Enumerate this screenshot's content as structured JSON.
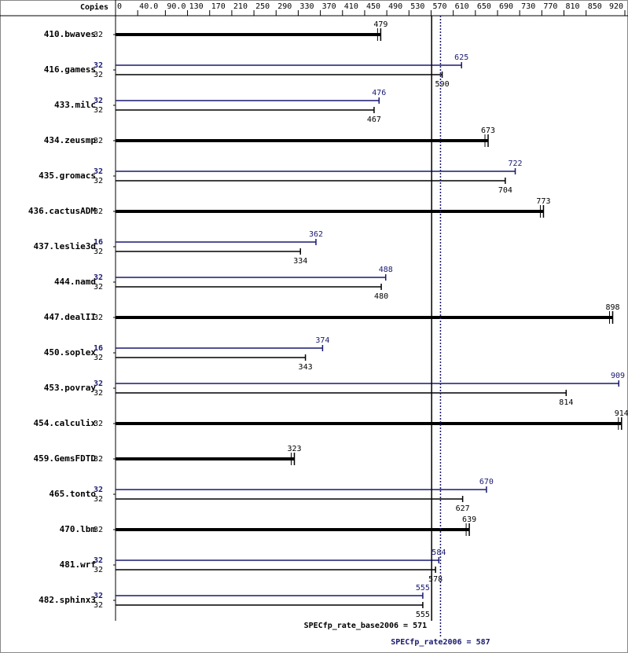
{
  "chart_data": {
    "type": "hbar",
    "header": "Copies",
    "categories": [
      "410.bwaves",
      "416.gamess",
      "433.milc",
      "434.zeusmp",
      "435.gromacs",
      "436.cactusADM",
      "437.leslie3d",
      "444.namd",
      "447.dealII",
      "450.soplex",
      "453.povray",
      "454.calculix",
      "459.GemsFDTD",
      "465.tonto",
      "470.lbm",
      "481.wrf",
      "482.sphinx3"
    ],
    "series": [
      {
        "color": "#000000",
        "copies": [
          32,
          32,
          32,
          32,
          32,
          32,
          32,
          32,
          32,
          32,
          32,
          32,
          32,
          32,
          32,
          32,
          32
        ],
        "values": [
          479,
          590,
          467,
          673,
          704,
          773,
          334,
          480,
          898,
          343,
          814,
          914,
          323,
          627,
          639,
          578,
          555
        ]
      },
      {
        "color": "#191970",
        "copies": [
          null,
          32,
          32,
          null,
          32,
          null,
          16,
          32,
          null,
          16,
          32,
          null,
          null,
          32,
          null,
          32,
          32
        ],
        "values": [
          null,
          625,
          476,
          null,
          722,
          null,
          362,
          488,
          null,
          374,
          909,
          null,
          null,
          670,
          null,
          584,
          555
        ]
      }
    ],
    "xlim": [
      0,
      920
    ],
    "xticks": [
      0,
      {
        "value": 40,
        "label": "40.0"
      },
      {
        "value": 90,
        "label": "90.0"
      },
      130,
      170,
      210,
      250,
      290,
      330,
      370,
      410,
      450,
      490,
      530,
      570,
      610,
      650,
      690,
      730,
      770,
      810,
      850,
      920
    ],
    "reference_lines": [
      {
        "label": "SPECfp_rate_base2006 = 571",
        "value": 571,
        "color": "#000000",
        "dashed": false
      },
      {
        "label": "SPECfp_rate2006 = 587",
        "value": 587,
        "color": "#191970",
        "dashed": true
      }
    ]
  }
}
